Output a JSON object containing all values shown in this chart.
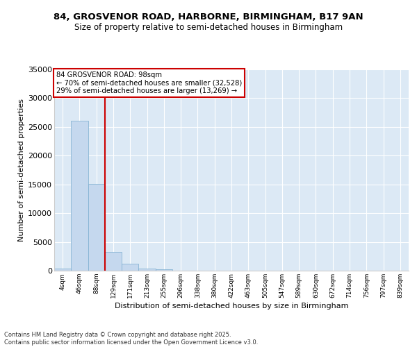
{
  "title_line1": "84, GROSVENOR ROAD, HARBORNE, BIRMINGHAM, B17 9AN",
  "title_line2": "Size of property relative to semi-detached houses in Birmingham",
  "xlabel": "Distribution of semi-detached houses by size in Birmingham",
  "ylabel": "Number of semi-detached properties",
  "categories": [
    "4sqm",
    "46sqm",
    "88sqm",
    "129sqm",
    "171sqm",
    "213sqm",
    "255sqm",
    "296sqm",
    "338sqm",
    "380sqm",
    "422sqm",
    "463sqm",
    "505sqm",
    "547sqm",
    "589sqm",
    "630sqm",
    "672sqm",
    "714sqm",
    "756sqm",
    "797sqm",
    "839sqm"
  ],
  "bar_values": [
    350,
    26100,
    15100,
    3250,
    1200,
    420,
    200,
    50,
    0,
    0,
    0,
    0,
    0,
    0,
    0,
    0,
    0,
    0,
    0,
    0,
    0
  ],
  "bar_color": "#c5d8ee",
  "bar_edgecolor": "#7aadcf",
  "vline_color": "#cc0000",
  "annotation_line1": "84 GROSVENOR ROAD: 98sqm",
  "annotation_line2": "← 70% of semi-detached houses are smaller (32,528)",
  "annotation_line3": "29% of semi-detached houses are larger (13,269) →",
  "annotation_box_color": "#ffffff",
  "annotation_box_edgecolor": "#cc0000",
  "ylim": [
    0,
    35000
  ],
  "yticks": [
    0,
    5000,
    10000,
    15000,
    20000,
    25000,
    30000,
    35000
  ],
  "background_color": "#dce9f5",
  "grid_color": "#ffffff",
  "footer": "Contains HM Land Registry data © Crown copyright and database right 2025.\nContains public sector information licensed under the Open Government Licence v3.0."
}
